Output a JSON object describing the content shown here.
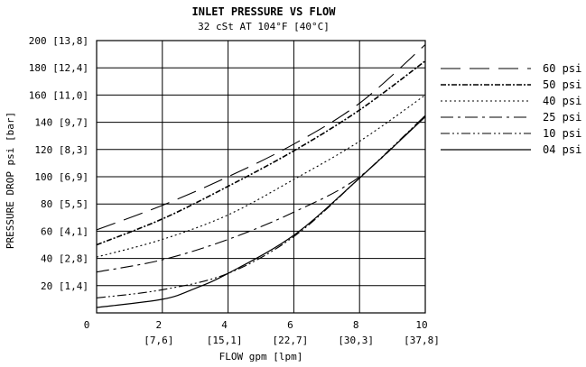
{
  "chart_data": {
    "type": "line",
    "title": "INLET PRESSURE VS FLOW",
    "subtitle": "32 cSt AT 104°F [40°C]",
    "xlabel": "FLOW gpm [lpm]",
    "ylabel": "PRESSURE DROP psi [bar]",
    "xlim": [
      0,
      10
    ],
    "ylim": [
      0,
      200
    ],
    "grid": true,
    "legend_position": "right",
    "x_ticks": [
      {
        "value": 0,
        "label": "0",
        "sub": ""
      },
      {
        "value": 2,
        "label": "2",
        "sub": "[7,6]"
      },
      {
        "value": 4,
        "label": "4",
        "sub": "[15,1]"
      },
      {
        "value": 6,
        "label": "6",
        "sub": "[22,7]"
      },
      {
        "value": 8,
        "label": "8",
        "sub": "[30,3]"
      },
      {
        "value": 10,
        "label": "10",
        "sub": "[37,8]"
      }
    ],
    "y_ticks": [
      {
        "value": 20,
        "label": "20 [1,4]"
      },
      {
        "value": 40,
        "label": "40 [2,8]"
      },
      {
        "value": 60,
        "label": "60 [4,1]"
      },
      {
        "value": 80,
        "label": "80 [5,5]"
      },
      {
        "value": 100,
        "label": "100 [6,9]"
      },
      {
        "value": 120,
        "label": "120 [8,3]"
      },
      {
        "value": 140,
        "label": "140 [9,7]"
      },
      {
        "value": 160,
        "label": "160 [11,0]"
      },
      {
        "value": 180,
        "label": "180 [12,4]"
      },
      {
        "value": 200,
        "label": "200 [13,8]"
      }
    ],
    "series": [
      {
        "name": "60 psi",
        "dash": "long",
        "x": [
          0,
          2,
          4,
          6,
          8,
          10
        ],
        "y": [
          61,
          79,
          100,
          124,
          154,
          197
        ]
      },
      {
        "name": "50 psi",
        "dash": "dashdot-heavy",
        "x": [
          0,
          2,
          4,
          6,
          8,
          10
        ],
        "y": [
          50,
          69,
          93,
          119,
          149,
          185
        ]
      },
      {
        "name": "40 psi",
        "dash": "dotted",
        "x": [
          0,
          2,
          4,
          6,
          8,
          10
        ],
        "y": [
          41,
          54,
          72,
          98,
          126,
          160
        ]
      },
      {
        "name": "25 psi",
        "dash": "dashdot",
        "x": [
          0,
          2,
          4,
          6,
          8,
          10
        ],
        "y": [
          30,
          39,
          54,
          74,
          100,
          145
        ]
      },
      {
        "name": "10 psi",
        "dash": "dashdotdot",
        "x": [
          0,
          2,
          4,
          6,
          8,
          10
        ],
        "y": [
          11,
          17,
          29,
          56,
          99,
          145
        ]
      },
      {
        "name": "04 psi",
        "dash": "solid",
        "x": [
          0,
          2,
          3,
          4,
          6,
          8,
          10
        ],
        "y": [
          4,
          10,
          18,
          29,
          57,
          99,
          144
        ]
      }
    ]
  },
  "colors": {
    "line": "#000000",
    "background": "#ffffff"
  }
}
